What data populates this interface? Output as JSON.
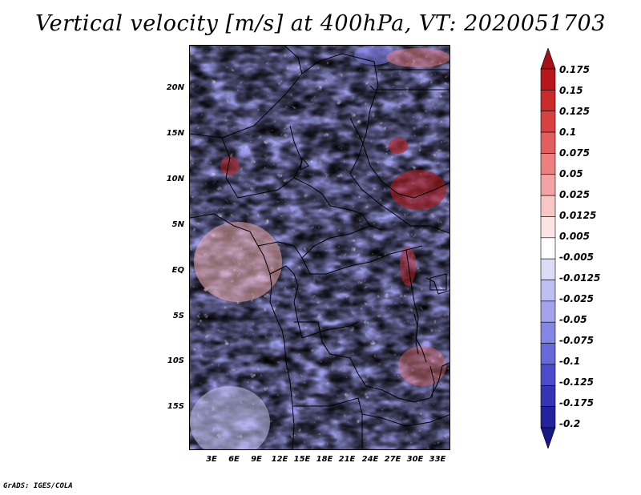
{
  "title": "Vertical velocity [m/s] at 400hPa, VT: 2020051703",
  "credit": "GrADS: IGES/COLA",
  "latitude_labels": [
    "20N",
    "15N",
    "10N",
    "5N",
    "EQ",
    "5S",
    "10S",
    "15S"
  ],
  "longitude_labels": [
    "3E",
    "6E",
    "9E",
    "12E",
    "15E",
    "18E",
    "21E",
    "24E",
    "27E",
    "30E",
    "33E"
  ],
  "colorbar": {
    "labels": [
      "0.175",
      "0.15",
      "0.125",
      "0.1",
      "0.075",
      "0.05",
      "0.025",
      "0.0125",
      "0.005",
      "-0.005",
      "-0.0125",
      "-0.025",
      "-0.05",
      "-0.075",
      "-0.1",
      "-0.125",
      "-0.175",
      "-0.2"
    ],
    "colors": [
      "#a50f15",
      "#b8161d",
      "#c92a2a",
      "#d94040",
      "#e35e5e",
      "#ec7f7f",
      "#f3a3a3",
      "#f8c6c6",
      "#fce4e4",
      "#ffffff",
      "#dcdcf7",
      "#bfbff2",
      "#a3a3ec",
      "#8585e3",
      "#6868d8",
      "#4c4cca",
      "#3434b5",
      "#23239c",
      "#181885"
    ]
  },
  "colors": {
    "positive": "#e25a5a",
    "negative": "#6a6ad6",
    "neutral": "#ffffff",
    "outline": "#000000"
  }
}
